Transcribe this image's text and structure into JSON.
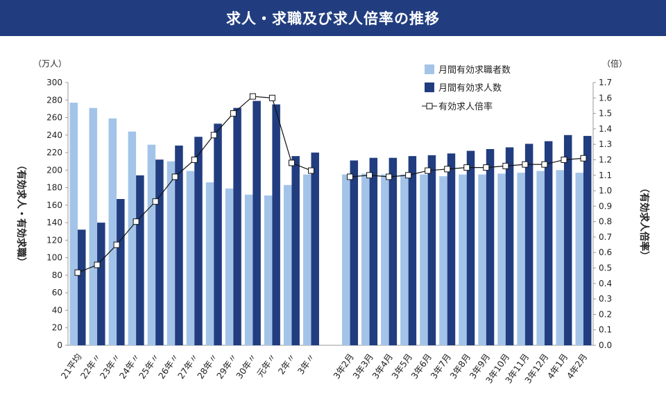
{
  "chart_data": {
    "type": "bar",
    "title": "求人・求職及び求人倍率の推移",
    "left_unit": "（万人）",
    "right_unit": "（倍）",
    "ylabel": "（有効求人・有効求職）",
    "y2label": "（有効求人倍率）",
    "ylim": [
      0,
      300
    ],
    "y2lim": [
      0,
      1.7
    ],
    "yticks": [
      "0",
      "20",
      "40",
      "60",
      "80",
      "100",
      "120",
      "140",
      "160",
      "180",
      "200",
      "220",
      "240",
      "260",
      "280",
      "300"
    ],
    "y2ticks": [
      "0.0",
      "0.1",
      "0.2",
      "0.3",
      "0.4",
      "0.5",
      "0.6",
      "0.7",
      "0.8",
      "0.9",
      "1.0",
      "1.1",
      "1.2",
      "1.3",
      "1.4",
      "1.5",
      "1.6",
      "1.7"
    ],
    "categories": [
      "21平均",
      "22年〃",
      "23年〃",
      "24年〃",
      "25年〃",
      "26年〃",
      "27年〃",
      "28年〃",
      "29年〃",
      "30年〃",
      "元年〃",
      "2年〃",
      "3年〃",
      "",
      "3年2月",
      "3年3月",
      "3年4月",
      "3年5月",
      "3年6月",
      "3年7月",
      "3年8月",
      "3年9月",
      "3年10月",
      "3年11月",
      "3年12月",
      "4年1月",
      "4年2月"
    ],
    "series": [
      {
        "name": "月間有効求職者数",
        "type": "bar",
        "color": "#a3c4e8",
        "values": [
          277,
          271,
          259,
          244,
          229,
          210,
          199,
          186,
          179,
          172,
          171,
          183,
          195,
          null,
          195,
          196,
          195,
          195,
          195,
          193,
          195,
          195,
          196,
          197,
          199,
          200,
          197
        ]
      },
      {
        "name": "月間有効求人数",
        "type": "bar",
        "color": "#213d7f",
        "values": [
          132,
          140,
          167,
          194,
          212,
          228,
          238,
          253,
          271,
          279,
          275,
          216,
          220,
          null,
          211,
          214,
          214,
          216,
          217,
          219,
          222,
          224,
          226,
          230,
          233,
          240,
          239
        ]
      },
      {
        "name": "有効求人倍率",
        "type": "line",
        "axis": "right",
        "color": "#111111",
        "values": [
          0.47,
          0.52,
          0.65,
          0.8,
          0.93,
          1.09,
          1.2,
          1.36,
          1.5,
          1.61,
          1.6,
          1.18,
          1.13,
          null,
          1.09,
          1.1,
          1.09,
          1.1,
          1.13,
          1.14,
          1.15,
          1.15,
          1.16,
          1.17,
          1.17,
          1.2,
          1.21
        ]
      }
    ],
    "legend": "top-right"
  }
}
